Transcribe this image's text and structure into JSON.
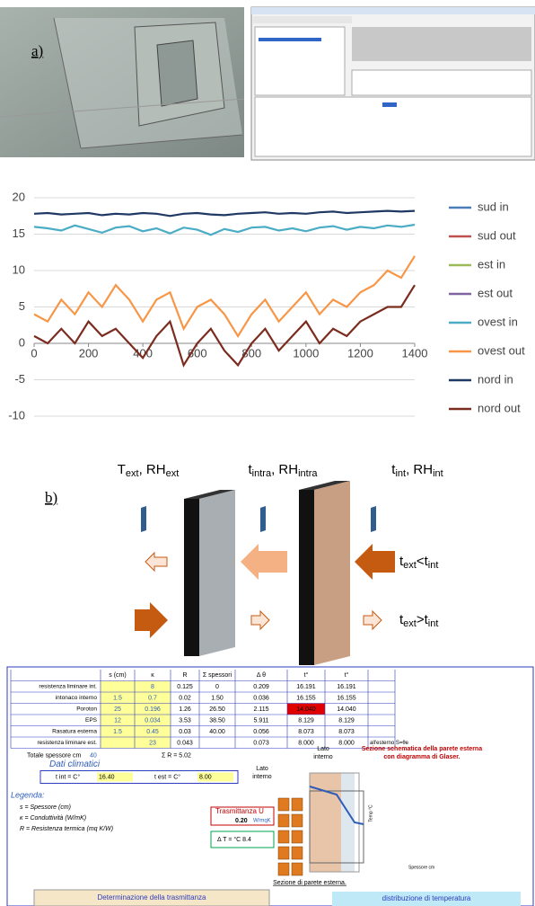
{
  "panel_a": {
    "label": "a)"
  },
  "chart_data": {
    "type": "line",
    "x": [
      0,
      50,
      100,
      150,
      200,
      250,
      300,
      350,
      400,
      450,
      500,
      550,
      600,
      650,
      700,
      750,
      800,
      850,
      900,
      950,
      1000,
      1050,
      1100,
      1150,
      1200,
      1250,
      1300,
      1350,
      1400
    ],
    "xlim": [
      0,
      1400
    ],
    "xticks": [
      0,
      200,
      400,
      600,
      800,
      1000,
      1200,
      1400
    ],
    "ylim": [
      -10,
      20
    ],
    "yticks": [
      -10,
      -5,
      0,
      5,
      10,
      15,
      20
    ],
    "grid": true,
    "legend": "right",
    "series": [
      {
        "name": "sud in",
        "color": "#4a7ebb",
        "values": [
          null,
          null,
          null,
          null,
          null,
          null,
          null,
          null,
          null,
          null,
          null,
          null,
          null,
          null,
          null,
          null,
          null,
          null,
          null,
          null,
          null,
          null,
          null,
          null,
          null,
          null,
          null,
          null,
          null
        ]
      },
      {
        "name": "sud out",
        "color": "#c0504d",
        "values": [
          null,
          null,
          null,
          null,
          null,
          null,
          null,
          null,
          null,
          null,
          null,
          null,
          null,
          null,
          null,
          null,
          null,
          null,
          null,
          null,
          null,
          null,
          null,
          null,
          null,
          null,
          null,
          null,
          null
        ]
      },
      {
        "name": "est in",
        "color": "#9bbb59",
        "values": [
          null,
          null,
          null,
          null,
          null,
          null,
          null,
          null,
          null,
          null,
          null,
          null,
          null,
          null,
          null,
          null,
          null,
          null,
          null,
          null,
          null,
          null,
          null,
          null,
          null,
          null,
          null,
          null,
          null
        ]
      },
      {
        "name": "est out",
        "color": "#8064a2",
        "values": [
          null,
          null,
          null,
          null,
          null,
          null,
          null,
          null,
          null,
          null,
          null,
          null,
          null,
          null,
          null,
          null,
          null,
          null,
          null,
          null,
          null,
          null,
          null,
          null,
          null,
          null,
          null,
          null,
          null
        ]
      },
      {
        "name": "ovest in",
        "color": "#4bacc6",
        "values": [
          16,
          15.8,
          15.5,
          16.2,
          15.7,
          15.2,
          15.9,
          16.1,
          15.4,
          15.8,
          15.1,
          15.9,
          15.6,
          14.9,
          15.7,
          15.3,
          15.9,
          16,
          15.5,
          15.8,
          15.4,
          15.9,
          16.1,
          15.6,
          16,
          15.8,
          16.2,
          16,
          16.3
        ]
      },
      {
        "name": "ovest out",
        "color": "#f79646",
        "values": [
          4,
          3,
          6,
          4,
          7,
          5,
          8,
          6,
          3,
          6,
          7,
          2,
          5,
          6,
          4,
          1,
          4,
          6,
          3,
          5,
          7,
          4,
          6,
          5,
          7,
          8,
          10,
          9,
          12
        ]
      },
      {
        "name": "nord in",
        "color": "#1f3864",
        "values": [
          17.8,
          17.9,
          17.7,
          17.8,
          17.9,
          17.6,
          17.8,
          17.7,
          17.9,
          17.8,
          17.5,
          17.8,
          17.9,
          17.7,
          17.6,
          17.8,
          17.9,
          18,
          17.8,
          17.9,
          17.8,
          18,
          18.1,
          17.9,
          18,
          18.1,
          18.2,
          18.1,
          18.2
        ]
      },
      {
        "name": "nord out",
        "color": "#7b2c1f",
        "values": [
          1,
          0,
          2,
          0,
          3,
          1,
          2,
          0,
          -2,
          1,
          3,
          -3,
          0,
          2,
          -1,
          -3,
          0,
          2,
          -1,
          1,
          3,
          0,
          2,
          1,
          3,
          4,
          5,
          5,
          8
        ]
      }
    ]
  },
  "panel_b": {
    "label": "b)",
    "top_labels": [
      [
        "T",
        "ext",
        ", RH",
        "ext"
      ],
      [
        "t",
        "intra",
        ", RH",
        "intra"
      ],
      [
        "t",
        "int",
        ", RH",
        "int"
      ]
    ],
    "conditions": [
      [
        "t",
        "ext",
        "<t",
        "int"
      ],
      [
        "t",
        "ext",
        ">t",
        "int"
      ]
    ]
  },
  "panel_c": {
    "headers": [
      "s (cm)",
      "κ",
      "R",
      "Σ spessori",
      "Δ θ",
      "t°",
      "t°"
    ],
    "rows": [
      [
        "resistenza liminare int.",
        null,
        "8",
        "0.125",
        "0",
        "0.209",
        "16.191",
        "16.191"
      ],
      [
        "intonaco interno",
        "1.5",
        "0.7",
        "0.02",
        "1.50",
        "0.036",
        "16.155",
        "16.155"
      ],
      [
        "Poroton",
        "25",
        "0.196",
        "1.26",
        "26.50",
        "2.115",
        "14.040",
        "14.040"
      ],
      [
        "EPS",
        "12",
        "0.034",
        "3.53",
        "38.50",
        "5.911",
        "8.129",
        "8.129"
      ],
      [
        "Rasatura esterna",
        "1.5",
        "0.45",
        "0.03",
        "40.00",
        "0.056",
        "8.073",
        "8.073"
      ],
      [
        "resistenza liminare est.",
        null,
        "23",
        "0.043",
        null,
        "0.073",
        "8.000",
        "8.000"
      ]
    ],
    "note": "all'esterno S=θe",
    "total_label": "Totale spessore cm",
    "total": "40",
    "sum_r": "Σ R = 5.02",
    "climate_title": "Dati climatici",
    "t_int": "t int = C°",
    "t_int_value": "16.40",
    "t_est": "t est = C°",
    "t_est_value": "8.00",
    "legend_title": "Legenda:",
    "legend": [
      "s = Spessore (cm)",
      "κ = Conduttività (W/mK)",
      "R = Resistenza termica (mq K/W)"
    ],
    "u_label": "Trasmittanza U",
    "u_value": "0.20",
    "u_unit": "W/mqK",
    "delta_t": "Δ T = °C 8.4",
    "lato_1": [
      "Lato",
      "interno"
    ],
    "lato_2": [
      "Lato",
      "interno"
    ],
    "glaser_title": [
      "Sezione schematica della parete esterna",
      "con diagramma di Glaser."
    ],
    "caption": "Sezione di parete esterna.",
    "x_axis": "Spessore cm",
    "y_axis": "Temp °C",
    "footer_left": "Determinazione della trasmittanza",
    "footer_right": "distribuzione di temperatura"
  }
}
